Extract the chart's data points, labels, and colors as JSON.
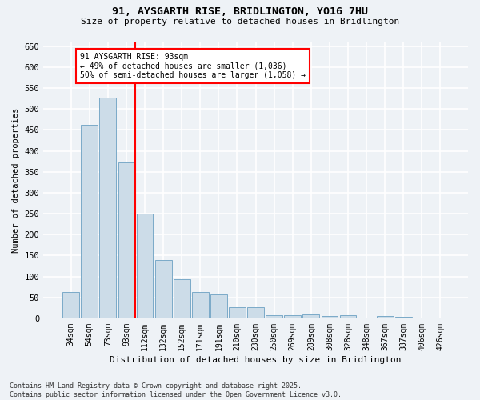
{
  "title_line1": "91, AYSGARTH RISE, BRIDLINGTON, YO16 7HU",
  "title_line2": "Size of property relative to detached houses in Bridlington",
  "xlabel": "Distribution of detached houses by size in Bridlington",
  "ylabel": "Number of detached properties",
  "categories": [
    "34sqm",
    "54sqm",
    "73sqm",
    "93sqm",
    "112sqm",
    "132sqm",
    "152sqm",
    "171sqm",
    "191sqm",
    "210sqm",
    "230sqm",
    "250sqm",
    "269sqm",
    "289sqm",
    "308sqm",
    "328sqm",
    "348sqm",
    "367sqm",
    "387sqm",
    "406sqm",
    "426sqm"
  ],
  "values": [
    62,
    462,
    528,
    372,
    250,
    140,
    93,
    63,
    57,
    27,
    27,
    7,
    7,
    10,
    5,
    8,
    2,
    5,
    3,
    2,
    2
  ],
  "bar_color": "#ccdce8",
  "bar_edge_color": "#7aaac8",
  "vline_x": 3.5,
  "vline_color": "red",
  "annotation_text": "91 AYSGARTH RISE: 93sqm\n← 49% of detached houses are smaller (1,036)\n50% of semi-detached houses are larger (1,058) →",
  "annotation_box_color": "white",
  "annotation_box_edge_color": "red",
  "ylim": [
    0,
    660
  ],
  "yticks": [
    0,
    50,
    100,
    150,
    200,
    250,
    300,
    350,
    400,
    450,
    500,
    550,
    600,
    650
  ],
  "footnote": "Contains HM Land Registry data © Crown copyright and database right 2025.\nContains public sector information licensed under the Open Government Licence v3.0.",
  "background_color": "#eef2f6",
  "grid_color": "#ffffff",
  "figsize": [
    6.0,
    5.0
  ],
  "dpi": 100
}
